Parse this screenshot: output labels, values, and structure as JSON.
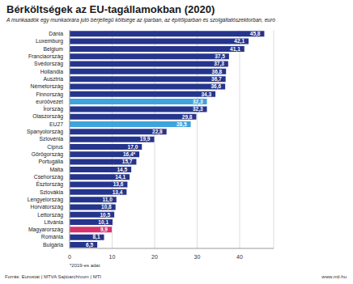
{
  "chart_data": {
    "type": "bar",
    "title": "Bérköltségek az EU-tagállamokban (2020)",
    "subtitle": "A munkaadók egy munkaórára jutó bérjellegű költsége az iparban, az építőiparban és szolgáltatószektorban, euró",
    "footnote": "*2019-es adat",
    "source": "Forrás: Eurostat | MTVA Sajtóarchívum | MTI",
    "website": "www.mti.hu",
    "orientation": "horizontal",
    "data_labels": true,
    "grid": true,
    "categories": [
      "Dánia",
      "Luxemburg",
      "Belgium",
      "Franciaország",
      "Svédország",
      "Hollandia",
      "Ausztria",
      "Németország",
      "Finnország",
      "euróövezet",
      "Írország",
      "Olaszország",
      "EU27",
      "Spanyolország",
      "Szlovénia",
      "Ciprus",
      "Görögország",
      "Portugália",
      "Málta",
      "Csehország",
      "Észtország",
      "Szlovákia",
      "Lengyelország",
      "Horvátország",
      "Lettország",
      "Litvánia",
      "Magyarország",
      "Románia",
      "Bulgária"
    ],
    "values": [
      45.8,
      42.1,
      41.1,
      37.5,
      37.3,
      36.8,
      36.7,
      36.6,
      34.3,
      32.3,
      32.3,
      29.8,
      28.5,
      22.8,
      19.9,
      17.0,
      16.4,
      15.7,
      14.5,
      14.1,
      13.6,
      13.4,
      11.0,
      10.8,
      10.5,
      10.1,
      9.9,
      8.1,
      6.5
    ],
    "value_labels": [
      "45,8",
      "42,1",
      "41,1",
      "37,5",
      "37,3",
      "36,8",
      "36,7",
      "36,6",
      "34,3",
      "32,3",
      "32,3",
      "29,8",
      "28,5",
      "22,8",
      "19,9",
      "17,0",
      "16,4*",
      "15,7",
      "14,5",
      "14,1",
      "13,6",
      "13,4",
      "11,0",
      "10,8",
      "10,5",
      "10,1",
      "9,9",
      "8,1",
      "6,5"
    ],
    "colors": [
      "#25358c",
      "#25358c",
      "#25358c",
      "#25358c",
      "#25358c",
      "#25358c",
      "#25358c",
      "#25358c",
      "#25358c",
      "#3fa3dd",
      "#25358c",
      "#25358c",
      "#3fa3dd",
      "#25358c",
      "#25358c",
      "#25358c",
      "#25358c",
      "#25358c",
      "#25358c",
      "#25358c",
      "#25358c",
      "#25358c",
      "#25358c",
      "#25358c",
      "#25358c",
      "#25358c",
      "#d8336b",
      "#25358c",
      "#25358c"
    ],
    "xlim": [
      0,
      48
    ],
    "xticks": [
      0,
      10,
      20,
      30,
      40
    ]
  }
}
